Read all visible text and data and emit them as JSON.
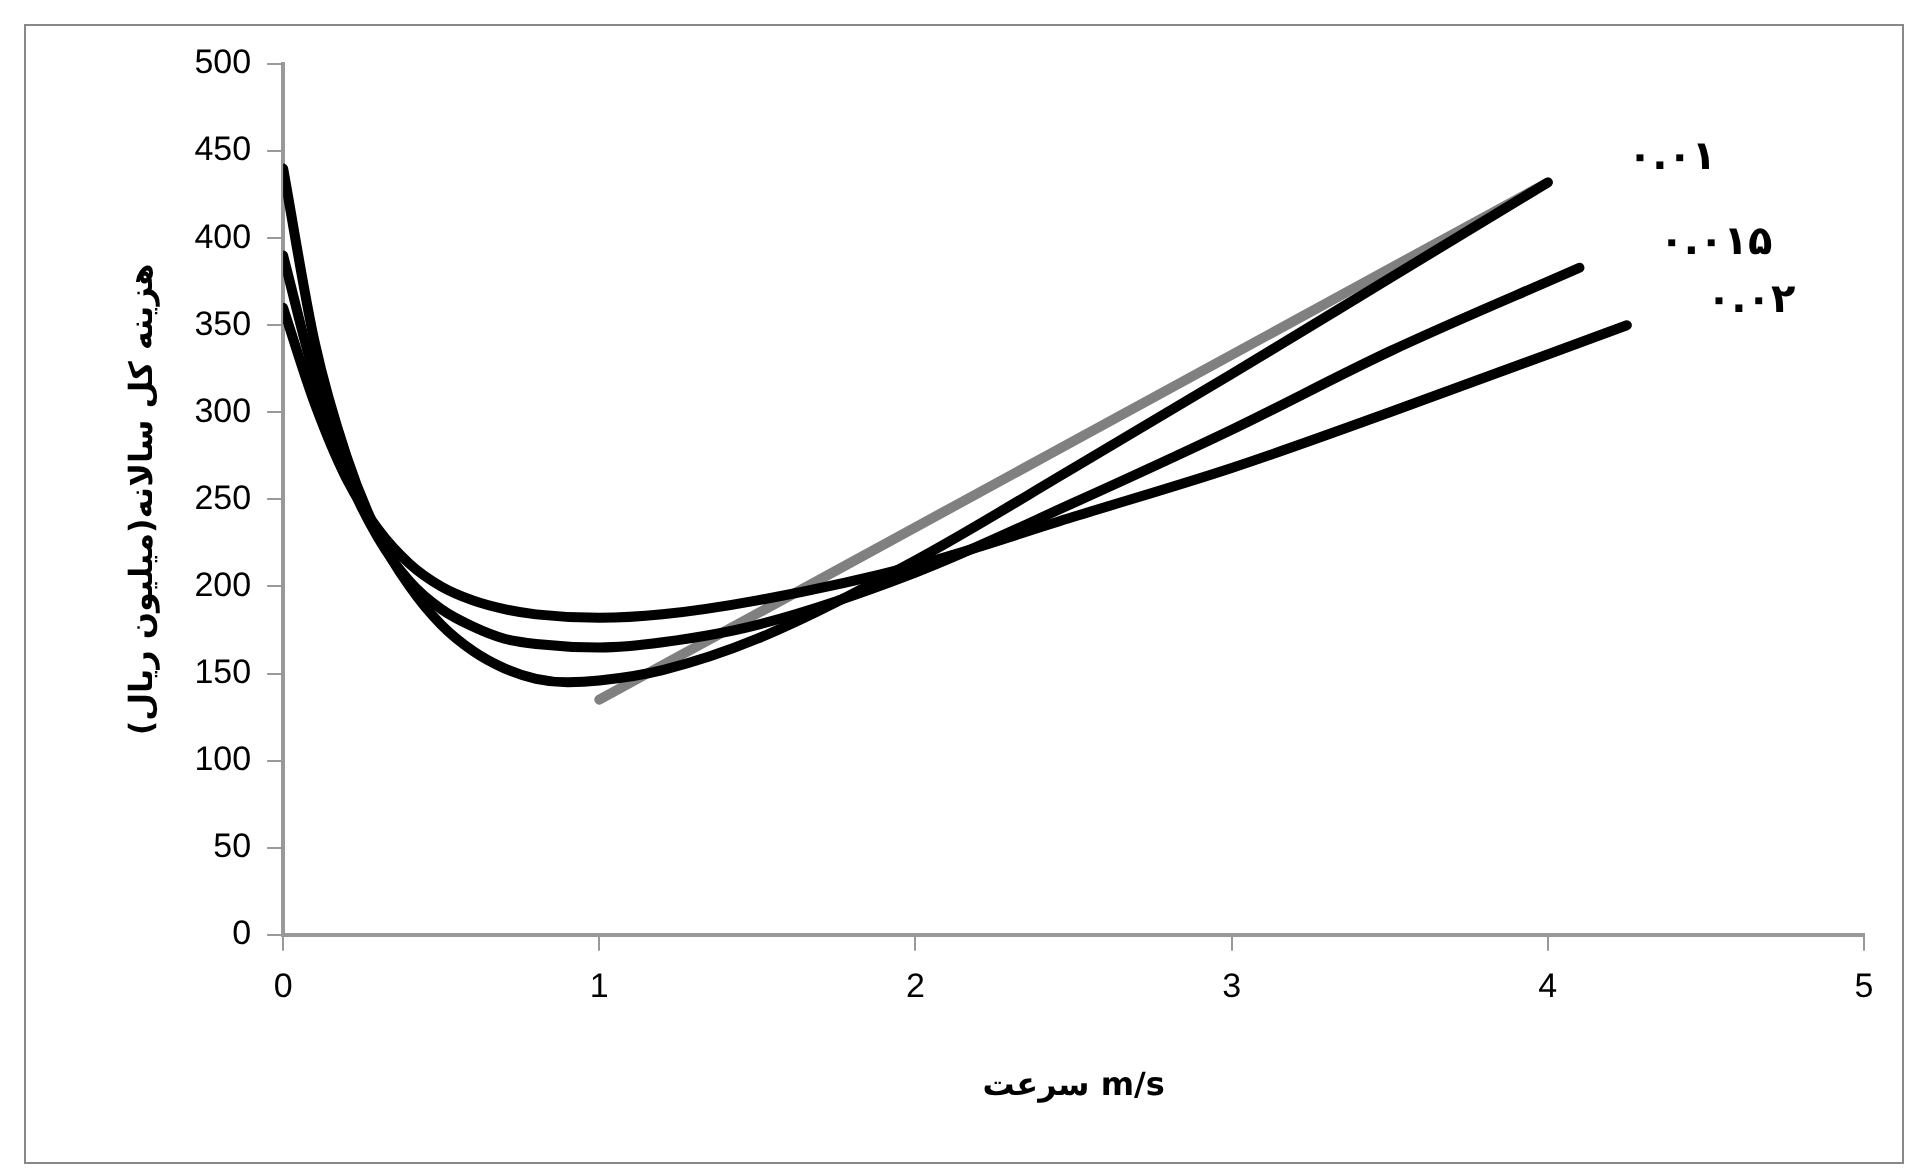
{
  "chart_data": {
    "type": "line",
    "xlabel": "سرعت m/s",
    "ylabel": "هزینه کل سالانه(میلیون ریال)",
    "xlim": [
      0,
      5
    ],
    "xticks": [
      0,
      1,
      2,
      3,
      4,
      5
    ],
    "ylim": [
      0,
      500
    ],
    "yticks": [
      0,
      50,
      100,
      150,
      200,
      250,
      300,
      350,
      400,
      450,
      500
    ],
    "grid": false,
    "legend": false,
    "marker": "none",
    "line_style": "solid",
    "series": [
      {
        "name": "۰.۰۱",
        "color": "#000000",
        "x": [
          0,
          0.1,
          0.2,
          0.3,
          0.4,
          0.5,
          0.6,
          0.7,
          0.8,
          0.9,
          1,
          1.2,
          1.5,
          2,
          2.5,
          3,
          3.5,
          4
        ],
        "values": [
          440,
          340,
          275,
          230,
          200,
          178,
          163,
          153,
          147,
          145,
          146,
          152,
          170,
          215,
          268,
          322,
          377,
          432
        ]
      },
      {
        "name": "۰.۰۱۵",
        "color": "#000000",
        "x": [
          0,
          0.1,
          0.2,
          0.3,
          0.4,
          0.5,
          0.6,
          0.7,
          0.8,
          1,
          1.2,
          1.5,
          2,
          2.5,
          3,
          3.5,
          4.1
        ],
        "values": [
          390,
          320,
          265,
          228,
          203,
          187,
          177,
          170,
          167,
          165,
          168,
          178,
          208,
          248,
          290,
          335,
          383
        ]
      },
      {
        "name": "۰.۰۲",
        "color": "#000000",
        "x": [
          0,
          0.1,
          0.2,
          0.3,
          0.4,
          0.5,
          0.6,
          0.7,
          0.8,
          1,
          1.2,
          1.5,
          2,
          2.5,
          3,
          3.5,
          4.25
        ],
        "values": [
          360,
          305,
          262,
          233,
          213,
          200,
          192,
          187,
          184,
          182,
          184,
          192,
          212,
          240,
          268,
          300,
          350
        ]
      },
      {
        "color": "#808080",
        "x": [
          1,
          4
        ],
        "values": [
          135,
          432
        ]
      }
    ]
  }
}
